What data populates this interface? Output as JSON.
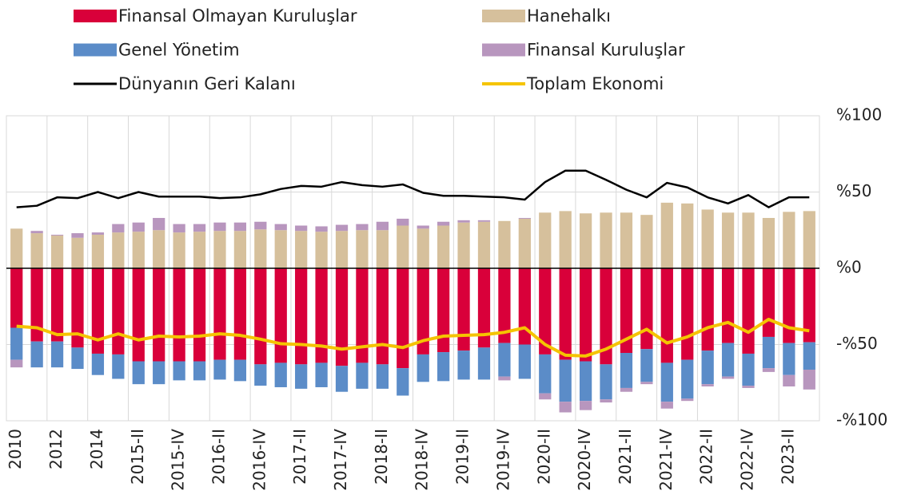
{
  "chart_data": {
    "type": "bar",
    "stacked": true,
    "categories": [
      "2010",
      null,
      "2012",
      null,
      "2014",
      null,
      "2015-II",
      null,
      "2015-IV",
      null,
      "2016-II",
      null,
      "2016-IV",
      null,
      "2017-II",
      null,
      "2017-IV",
      null,
      "2018-II",
      null,
      "2018-IV",
      null,
      "2019-II",
      null,
      "2019-IV",
      null,
      "2020-II",
      null,
      "2020-IV",
      null,
      "2021-II",
      null,
      "2021-IV",
      null,
      "2022-II",
      null,
      "2022-IV",
      null,
      "2023-II",
      null
    ],
    "series": [
      {
        "name": "Finansal Olmayan Kuruluşlar",
        "type": "bar",
        "color": "#d9003a",
        "values": [
          -39,
          -48,
          -48,
          -52,
          -56,
          -56.5,
          -61,
          -61,
          -61,
          -61,
          -60,
          -60,
          -63,
          -62,
          -63,
          -62,
          -64,
          -62,
          -63,
          -65.5,
          -56.5,
          -55,
          -54,
          -52,
          -49,
          -50,
          -56.5,
          -60,
          -61,
          -63,
          -55.5,
          -53,
          -62,
          -60,
          -54,
          -49,
          -56,
          -45,
          -49,
          -48.5
        ]
      },
      {
        "name": "Hanehalkı",
        "type": "bar",
        "color": "#d6c09c",
        "values": [
          26,
          23,
          21.5,
          20,
          22,
          23.5,
          24,
          25,
          23.5,
          24,
          24.5,
          24.5,
          25.5,
          25,
          24.5,
          24,
          24.5,
          25,
          25,
          28,
          26,
          28,
          30,
          30.5,
          31,
          32.5,
          36.5,
          37.5,
          36,
          36.5,
          36.5,
          35,
          43,
          42.5,
          38.5,
          36.5,
          36.5,
          33,
          37,
          37.5
        ]
      },
      {
        "name": "Genel Yönetim",
        "type": "bar",
        "color": "#5b8cc8",
        "values": [
          -21,
          -17,
          -17,
          -14,
          -14,
          -16,
          -15,
          -15,
          -12.5,
          -12.5,
          -13,
          -14,
          -14,
          -16,
          -16,
          -16,
          -17,
          -17,
          -16,
          -18,
          -18,
          -19,
          -19,
          -21,
          -22,
          -22.5,
          -25.5,
          -27.5,
          -26,
          -23,
          -23,
          -21.5,
          -25.5,
          -25.5,
          -22,
          -22,
          -21,
          -20.5,
          -21,
          -18
        ]
      },
      {
        "name": "Finansal Kuruluşlar",
        "type": "bar",
        "color": "#b896be",
        "values": [
          -5,
          1.5,
          0.5,
          3,
          1.5,
          5.5,
          6,
          8,
          5.5,
          5,
          5.5,
          5.5,
          5,
          4,
          3.5,
          3.5,
          4,
          4,
          5.5,
          4.5,
          2,
          2.5,
          1.5,
          1,
          -2.5,
          0.5,
          -4,
          -7,
          -6,
          -2,
          -2.5,
          -1.5,
          -4.5,
          -1.5,
          -1.5,
          -1.5,
          -1.5,
          -2.5,
          -7.5,
          -13
        ]
      },
      {
        "name": "Dünyanın Geri Kalanı",
        "type": "line",
        "color": "#000000",
        "values": [
          40,
          41,
          46.5,
          46,
          50,
          46,
          50,
          47,
          47,
          47,
          46,
          46.5,
          48.5,
          52,
          54,
          53.5,
          56.5,
          54.5,
          53.5,
          55,
          49.5,
          47.5,
          47.5,
          47,
          46.5,
          45,
          56.5,
          64,
          64,
          58,
          51.5,
          46.5,
          56,
          53,
          46.5,
          42.5,
          48,
          40,
          46.5,
          46.5
        ]
      },
      {
        "name": "Toplam Ekonomi",
        "type": "line",
        "color": "#f5c400",
        "values": [
          -38,
          -39,
          -43.5,
          -43,
          -47,
          -43,
          -47,
          -44.5,
          -45,
          -44.5,
          -43,
          -44,
          -46.5,
          -49.5,
          -50,
          -51,
          -53,
          -51.5,
          -50,
          -52,
          -47.5,
          -44.5,
          -44,
          -43.5,
          -42,
          -39,
          -50,
          -57,
          -57.5,
          -53,
          -46.5,
          -40,
          -49,
          -45,
          -39,
          -35.5,
          -42,
          -33.5,
          -39,
          -41
        ]
      }
    ],
    "ylim": [
      -100,
      100
    ],
    "yticks": [
      {
        "value": 100,
        "label": "%100"
      },
      {
        "value": 50,
        "label": "%50"
      },
      {
        "value": 0,
        "label": "%0"
      },
      {
        "value": -50,
        "label": "-%50"
      },
      {
        "value": -100,
        "label": "-%100"
      }
    ],
    "grid": true
  }
}
